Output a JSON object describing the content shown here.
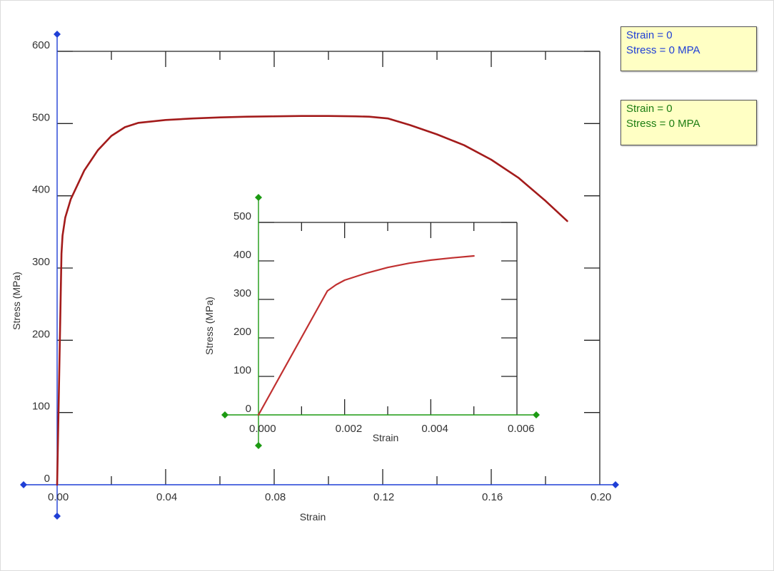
{
  "colors": {
    "main_axis": "#1f3fd6",
    "inset_axis": "#1c9a12",
    "main_curve": "#a31b1b",
    "inset_curve": "#c03030",
    "frame": "#222222",
    "readout_bg": "#ffffc4"
  },
  "readouts": {
    "main": {
      "strain": "Strain = 0",
      "stress": "Stress = 0 MPA"
    },
    "inset": {
      "strain": "Strain = 0",
      "stress": "Stress = 0 MPA"
    }
  },
  "chart_data": [
    {
      "type": "line",
      "xlabel": "Strain",
      "ylabel": "Stress (MPa)",
      "xlim": [
        0,
        0.2
      ],
      "ylim": [
        0,
        600
      ],
      "x_ticks": [
        "0.00",
        "0.04",
        "0.08",
        "0.12",
        "0.16",
        "0.20"
      ],
      "y_ticks": [
        "0",
        "100",
        "200",
        "300",
        "400",
        "500",
        "600"
      ],
      "series": [
        {
          "x": [
            0,
            0.0012,
            0.0016,
            0.002,
            0.003,
            0.005,
            0.01,
            0.015,
            0.02,
            0.025,
            0.03,
            0.04,
            0.05,
            0.06,
            0.07,
            0.08,
            0.09,
            0.1,
            0.11,
            0.115,
            0.122,
            0.13,
            0.14,
            0.15,
            0.16,
            0.17,
            0.18,
            0.188
          ],
          "y": [
            0,
            240,
            320,
            345,
            370,
            395,
            435,
            463,
            483,
            495,
            501,
            505,
            507,
            508.5,
            509.5,
            510,
            510.5,
            510.5,
            510,
            509.5,
            507,
            498,
            485,
            470,
            450,
            425,
            393,
            365
          ]
        }
      ]
    },
    {
      "type": "line",
      "xlabel": "Strain",
      "ylabel": "Stress (MPa)",
      "xlim": [
        0,
        0.006
      ],
      "ylim": [
        0,
        500
      ],
      "x_ticks": [
        "0.000",
        "0.002",
        "0.004",
        "0.006"
      ],
      "y_ticks": [
        "0",
        "100",
        "200",
        "300",
        "400",
        "500"
      ],
      "series": [
        {
          "x": [
            0,
            0.0016,
            0.0018,
            0.002,
            0.0025,
            0.003,
            0.0035,
            0.004,
            0.0045,
            0.005
          ],
          "y": [
            0,
            322,
            338,
            350,
            368,
            383,
            394,
            402,
            408,
            413
          ]
        }
      ]
    }
  ]
}
